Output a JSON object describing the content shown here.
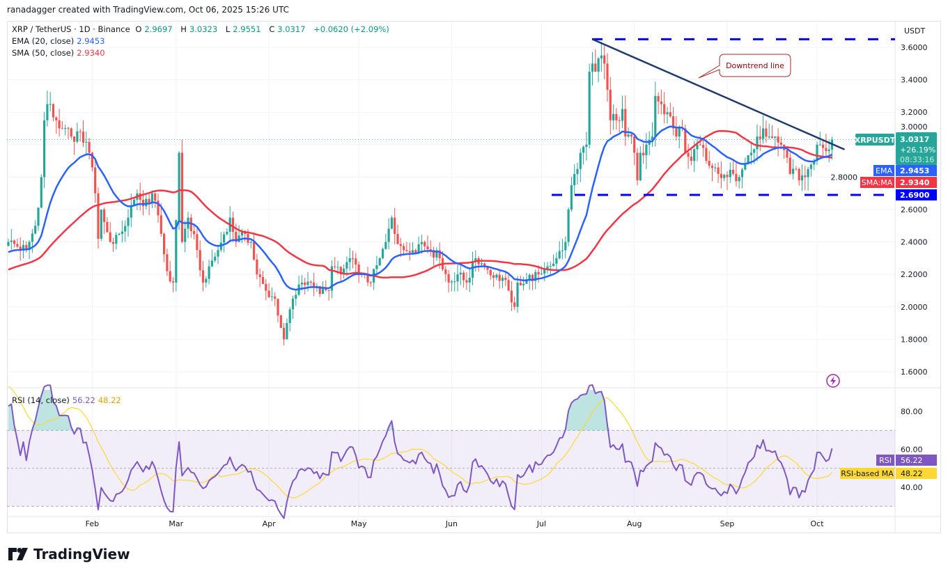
{
  "credit": "ranadagger created with TradingView.com, Oct 06, 2025 15:26 UTC",
  "legend": {
    "symbol": "XRP / TetherUS · 1D · Binance",
    "o_label": "O",
    "o": "2.9697",
    "h_label": "H",
    "h": "3.0323",
    "l_label": "L",
    "l": "2.9551",
    "c_label": "C",
    "c": "3.0317",
    "change": "+0.0620 (+2.09%)",
    "ema_label": "EMA (20, close)",
    "ema_value": "2.9453",
    "sma_label": "SMA (50, close)",
    "sma_value": "2.9340",
    "rsi_label": "RSI (14, close)",
    "rsi_value": "56.22",
    "rsi_ma_value": "48.22"
  },
  "price_axis": {
    "currency": "USDT",
    "ticks": [
      "3.6000",
      "3.4000",
      "3.2000",
      "3.0000",
      "2.8000",
      "2.6000",
      "2.4000",
      "2.2000",
      "2.0000",
      "1.8000",
      "1.6000"
    ],
    "symbol_tag": "XRPUSDT",
    "last_price": "3.0317",
    "last_change": "+26.19%",
    "countdown": "08:33:16",
    "ema_tag": "EMA",
    "ema_value": "2.9453",
    "sma_tag": "SMA:MA",
    "sma_value": "2.9340",
    "support_value": "2.6900"
  },
  "rsi_axis": {
    "ticks": [
      "80.00",
      "60.00",
      "40.00"
    ],
    "rsi_tag": "RSI",
    "rsi_value": "56.22",
    "ma_tag": "RSI-based MA",
    "ma_value": "48.22"
  },
  "time_axis": [
    "Feb",
    "Mar",
    "Apr",
    "May",
    "Jun",
    "Jul",
    "Aug",
    "Sep",
    "Oct"
  ],
  "annotation": {
    "callout": "Downtrend line"
  },
  "logo": "TradingView",
  "colors": {
    "up": "#26a69a",
    "down": "#ef5350",
    "ema": "#2962ff",
    "sma": "#f23645",
    "rsi": "#7e57c2",
    "rsi_ma": "#fdd835",
    "level_lines": "#0000ff",
    "trendline": "#1e3a6e"
  },
  "chart_data": {
    "type": "candlestick",
    "symbol": "XRPUSDT",
    "timeframe": "1D",
    "year": 2025,
    "ylim": [
      1.55,
      3.7
    ],
    "indicators": [
      "EMA 20",
      "SMA 50",
      "RSI 14",
      "RSI-based MA"
    ],
    "levels": [
      3.65,
      2.69
    ],
    "downtrend_line": [
      {
        "date": "07-18",
        "price": 3.65
      },
      {
        "date": "10-06",
        "price": 2.97
      }
    ],
    "close_anchors": [
      [
        "01-04",
        2.4
      ],
      [
        "01-10",
        2.35
      ],
      [
        "01-13",
        2.5
      ],
      [
        "01-15",
        2.8
      ],
      [
        "01-16",
        3.15
      ],
      [
        "01-17",
        3.25
      ],
      [
        "01-20",
        3.15
      ],
      [
        "01-22",
        3.1
      ],
      [
        "01-25",
        3.05
      ],
      [
        "01-28",
        3.08
      ],
      [
        "01-31",
        2.95
      ],
      [
        "02-02",
        2.7
      ],
      [
        "02-03",
        2.42
      ],
      [
        "02-04",
        2.6
      ],
      [
        "02-07",
        2.4
      ],
      [
        "02-10",
        2.45
      ],
      [
        "02-13",
        2.55
      ],
      [
        "02-16",
        2.7
      ],
      [
        "02-18",
        2.62
      ],
      [
        "02-21",
        2.7
      ],
      [
        "02-24",
        2.45
      ],
      [
        "02-26",
        2.22
      ],
      [
        "02-28",
        2.15
      ],
      [
        "03-02",
        2.95
      ],
      [
        "03-03",
        2.4
      ],
      [
        "03-05",
        2.55
      ],
      [
        "03-08",
        2.35
      ],
      [
        "03-10",
        2.15
      ],
      [
        "03-12",
        2.25
      ],
      [
        "03-15",
        2.35
      ],
      [
        "03-19",
        2.55
      ],
      [
        "03-21",
        2.4
      ],
      [
        "03-24",
        2.45
      ],
      [
        "03-26",
        2.4
      ],
      [
        "03-28",
        2.2
      ],
      [
        "03-31",
        2.1
      ],
      [
        "04-03",
        2.05
      ],
      [
        "04-06",
        1.8
      ],
      [
        "04-07",
        1.9
      ],
      [
        "04-09",
        2.05
      ],
      [
        "04-12",
        2.15
      ],
      [
        "04-15",
        2.15
      ],
      [
        "04-18",
        2.08
      ],
      [
        "04-21",
        2.1
      ],
      [
        "04-22",
        2.25
      ],
      [
        "04-25",
        2.2
      ],
      [
        "04-28",
        2.3
      ],
      [
        "05-01",
        2.2
      ],
      [
        "05-05",
        2.15
      ],
      [
        "05-08",
        2.3
      ],
      [
        "05-10",
        2.4
      ],
      [
        "05-12",
        2.55
      ],
      [
        "05-13",
        2.45
      ],
      [
        "05-16",
        2.35
      ],
      [
        "05-19",
        2.35
      ],
      [
        "05-22",
        2.4
      ],
      [
        "05-25",
        2.35
      ],
      [
        "05-28",
        2.3
      ],
      [
        "05-31",
        2.15
      ],
      [
        "06-03",
        2.2
      ],
      [
        "06-06",
        2.15
      ],
      [
        "06-09",
        2.3
      ],
      [
        "06-12",
        2.25
      ],
      [
        "06-15",
        2.18
      ],
      [
        "06-18",
        2.18
      ],
      [
        "06-20",
        2.1
      ],
      [
        "06-22",
        2.0
      ],
      [
        "06-23",
        2.15
      ],
      [
        "06-26",
        2.17
      ],
      [
        "06-30",
        2.2
      ],
      [
        "07-03",
        2.25
      ],
      [
        "07-06",
        2.3
      ],
      [
        "07-09",
        2.4
      ],
      [
        "07-10",
        2.6
      ],
      [
        "07-11",
        2.75
      ],
      [
        "07-13",
        2.85
      ],
      [
        "07-14",
        2.95
      ],
      [
        "07-16",
        3.0
      ],
      [
        "07-17",
        3.45
      ],
      [
        "07-18",
        3.5
      ],
      [
        "07-19",
        3.45
      ],
      [
        "07-21",
        3.55
      ],
      [
        "07-22",
        3.5
      ],
      [
        "07-24",
        3.15
      ],
      [
        "07-26",
        3.15
      ],
      [
        "07-28",
        3.22
      ],
      [
        "07-29",
        3.05
      ],
      [
        "07-31",
        3.05
      ],
      [
        "08-01",
        2.95
      ],
      [
        "08-02",
        2.78
      ],
      [
        "08-03",
        2.95
      ],
      [
        "08-05",
        3.0
      ],
      [
        "08-07",
        3.05
      ],
      [
        "08-08",
        3.3
      ],
      [
        "08-10",
        3.25
      ],
      [
        "08-12",
        3.2
      ],
      [
        "08-14",
        3.1
      ],
      [
        "08-15",
        3.05
      ],
      [
        "08-17",
        3.1
      ],
      [
        "08-18",
        2.95
      ],
      [
        "08-20",
        2.9
      ],
      [
        "08-22",
        3.0
      ],
      [
        "08-24",
        2.98
      ],
      [
        "08-26",
        2.87
      ],
      [
        "08-29",
        2.82
      ],
      [
        "09-01",
        2.8
      ],
      [
        "09-03",
        2.82
      ],
      [
        "09-05",
        2.8
      ],
      [
        "09-07",
        2.88
      ],
      [
        "09-09",
        2.95
      ],
      [
        "09-11",
        3.05
      ],
      [
        "09-13",
        3.1
      ],
      [
        "09-15",
        3.05
      ],
      [
        "09-17",
        3.05
      ],
      [
        "09-19",
        3.0
      ],
      [
        "09-21",
        2.92
      ],
      [
        "09-22",
        2.82
      ],
      [
        "09-24",
        2.85
      ],
      [
        "09-25",
        2.78
      ],
      [
        "09-27",
        2.8
      ],
      [
        "09-28",
        2.85
      ],
      [
        "09-30",
        2.9
      ],
      [
        "10-01",
        3.0
      ],
      [
        "10-02",
        3.0
      ],
      [
        "10-03",
        2.98
      ],
      [
        "10-04",
        2.96
      ],
      [
        "10-05",
        2.97
      ],
      [
        "10-06",
        3.0317
      ]
    ],
    "rsi_levels": [
      70,
      50,
      30
    ],
    "rsi_ylim": [
      25,
      90
    ]
  }
}
